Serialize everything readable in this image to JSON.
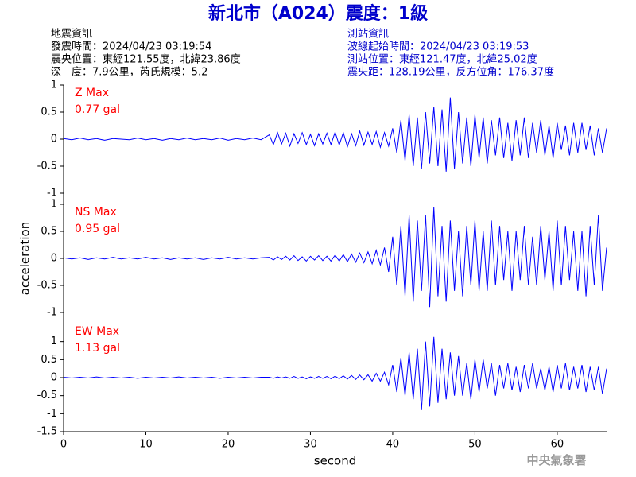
{
  "header": {
    "title": "新北市（A024）震度：1級",
    "left": [
      "地震資訊",
      "發震時間：2024/04/23 03:19:54",
      "震央位置：東經121.55度，北緯23.86度",
      "深　度：7.9公里，芮氏規模：5.2"
    ],
    "right": [
      "測站資訊",
      "波線起始時間：2024/04/23 03:19:53",
      "測站位置：東經121.47度，北緯25.02度",
      "震央距：128.19公里，反方位角：176.37度"
    ]
  },
  "footer": "中央氣象署",
  "chart_data": [
    {
      "type": "line",
      "annotations": [
        "Z Max",
        "0.77 gal"
      ],
      "color": "#0000ff",
      "annotation_color": "#ff0000",
      "xlim": [
        0,
        66
      ],
      "ylim": [
        -1,
        1
      ],
      "yticks": [
        -1,
        -0.5,
        0,
        0.5,
        1
      ],
      "x": [
        0,
        1,
        2,
        3,
        4,
        5,
        6,
        7,
        8,
        9,
        10,
        11,
        12,
        13,
        14,
        15,
        16,
        17,
        18,
        19,
        20,
        21,
        22,
        23,
        24,
        25,
        25.5,
        26,
        26.5,
        27,
        27.5,
        28,
        28.5,
        29,
        29.5,
        30,
        30.5,
        31,
        31.5,
        32,
        32.5,
        33,
        33.5,
        34,
        34.5,
        35,
        35.5,
        36,
        36.5,
        37,
        37.5,
        38,
        38.5,
        39,
        39.5,
        40,
        40.5,
        41,
        41.5,
        42,
        42.5,
        43,
        43.5,
        44,
        44.5,
        45,
        45.5,
        46,
        46.5,
        47,
        47.5,
        48,
        48.5,
        49,
        49.5,
        50,
        50.5,
        51,
        51.5,
        52,
        52.5,
        53,
        53.5,
        54,
        54.5,
        55,
        55.5,
        56,
        56.5,
        57,
        57.5,
        58,
        58.5,
        59,
        59.5,
        60,
        60.5,
        61,
        61.5,
        62,
        62.5,
        63,
        63.5,
        64,
        64.5,
        65,
        65.5,
        66
      ],
      "values": [
        0.01,
        -0.01,
        0.02,
        -0.01,
        0.01,
        -0.02,
        0.01,
        0,
        -0.01,
        0.02,
        -0.01,
        0.01,
        -0.02,
        0.01,
        -0.01,
        0.02,
        -0.01,
        0.01,
        -0.01,
        0.02,
        -0.02,
        0.01,
        -0.01,
        0.02,
        -0.01,
        0.08,
        -0.1,
        0.12,
        -0.09,
        0.11,
        -0.13,
        0.1,
        -0.08,
        0.12,
        -0.1,
        0.09,
        -0.12,
        0.1,
        -0.09,
        0.11,
        -0.1,
        0.13,
        -0.11,
        0.12,
        -0.14,
        0.1,
        -0.12,
        0.15,
        -0.11,
        0.13,
        -0.1,
        0.14,
        -0.15,
        0.12,
        -0.13,
        0.2,
        -0.25,
        0.35,
        -0.4,
        0.45,
        -0.5,
        0.4,
        -0.55,
        0.5,
        -0.45,
        0.6,
        -0.5,
        0.55,
        -0.6,
        0.77,
        -0.55,
        0.5,
        -0.45,
        0.4,
        -0.5,
        0.45,
        -0.35,
        0.4,
        -0.45,
        0.35,
        -0.3,
        0.4,
        -0.35,
        0.3,
        -0.4,
        0.35,
        -0.3,
        0.4,
        -0.35,
        0.3,
        -0.25,
        0.35,
        -0.3,
        0.25,
        -0.35,
        0.3,
        -0.2,
        0.25,
        -0.3,
        0.3,
        -0.25,
        0.3,
        -0.2,
        0.25,
        -0.3,
        0.2,
        -0.25,
        0.2
      ]
    },
    {
      "type": "line",
      "annotations": [
        "NS Max",
        "0.95 gal"
      ],
      "ylabel": "acceleration",
      "color": "#0000ff",
      "annotation_color": "#ff0000",
      "xlim": [
        0,
        66
      ],
      "ylim": [
        -1,
        1
      ],
      "yticks": [
        -1,
        -0.5,
        0,
        0.5,
        1
      ],
      "x": [
        0,
        1,
        2,
        3,
        4,
        5,
        6,
        7,
        8,
        9,
        10,
        11,
        12,
        13,
        14,
        15,
        16,
        17,
        18,
        19,
        20,
        21,
        22,
        23,
        24,
        25,
        25.5,
        26,
        26.5,
        27,
        27.5,
        28,
        28.5,
        29,
        29.5,
        30,
        30.5,
        31,
        31.5,
        32,
        32.5,
        33,
        33.5,
        34,
        34.5,
        35,
        35.5,
        36,
        36.5,
        37,
        37.5,
        38,
        38.5,
        39,
        39.5,
        40,
        40.5,
        41,
        41.5,
        42,
        42.5,
        43,
        43.5,
        44,
        44.5,
        45,
        45.5,
        46,
        46.5,
        47,
        47.5,
        48,
        48.5,
        49,
        49.5,
        50,
        50.5,
        51,
        51.5,
        52,
        52.5,
        53,
        53.5,
        54,
        54.5,
        55,
        55.5,
        56,
        56.5,
        57,
        57.5,
        58,
        58.5,
        59,
        59.5,
        60,
        60.5,
        61,
        61.5,
        62,
        62.5,
        63,
        63.5,
        64,
        64.5,
        65,
        65.5,
        66
      ],
      "values": [
        0.01,
        -0.01,
        0.01,
        -0.02,
        0.01,
        -0.01,
        0.02,
        -0.01,
        0.01,
        -0.01,
        0.02,
        -0.01,
        0.01,
        -0.02,
        0.01,
        -0.01,
        0.01,
        -0.02,
        0.01,
        -0.01,
        0.02,
        -0.01,
        0.01,
        -0.01,
        0.01,
        0.02,
        -0.03,
        0.03,
        -0.02,
        0.04,
        -0.03,
        0.05,
        -0.04,
        0.03,
        -0.05,
        0.04,
        -0.03,
        0.05,
        -0.04,
        0.04,
        -0.05,
        0.06,
        -0.05,
        0.07,
        -0.06,
        0.08,
        -0.07,
        0.1,
        -0.08,
        0.12,
        -0.1,
        0.15,
        -0.12,
        0.2,
        -0.25,
        0.4,
        -0.5,
        0.6,
        -0.7,
        0.8,
        -0.8,
        0.7,
        -0.6,
        0.8,
        -0.9,
        0.95,
        -0.7,
        0.6,
        -0.8,
        0.7,
        -0.6,
        0.5,
        -0.7,
        0.6,
        -0.5,
        0.7,
        -0.6,
        0.5,
        -0.6,
        0.7,
        -0.5,
        0.6,
        -0.4,
        0.5,
        -0.6,
        0.5,
        -0.4,
        0.6,
        -0.5,
        0.4,
        -0.5,
        0.6,
        -0.4,
        0.5,
        -0.6,
        0.7,
        -0.5,
        0.6,
        -0.4,
        0.5,
        -0.6,
        0.5,
        -0.7,
        0.6,
        -0.5,
        0.8,
        -0.6,
        0.2
      ]
    },
    {
      "type": "line",
      "annotations": [
        "EW Max",
        "1.13 gal"
      ],
      "xlabel": "second",
      "color": "#0000ff",
      "annotation_color": "#ff0000",
      "xlim": [
        0,
        66
      ],
      "xticks": [
        0,
        10,
        20,
        30,
        40,
        50,
        60
      ],
      "ylim": [
        -1.5,
        1.5
      ],
      "yticks": [
        -1.5,
        -1,
        -0.5,
        0,
        0.5,
        1
      ],
      "x": [
        0,
        1,
        2,
        3,
        4,
        5,
        6,
        7,
        8,
        9,
        10,
        11,
        12,
        13,
        14,
        15,
        16,
        17,
        18,
        19,
        20,
        21,
        22,
        23,
        24,
        25,
        25.5,
        26,
        26.5,
        27,
        27.5,
        28,
        28.5,
        29,
        29.5,
        30,
        30.5,
        31,
        31.5,
        32,
        32.5,
        33,
        33.5,
        34,
        34.5,
        35,
        35.5,
        36,
        36.5,
        37,
        37.5,
        38,
        38.5,
        39,
        39.5,
        40,
        40.5,
        41,
        41.5,
        42,
        42.5,
        43,
        43.5,
        44,
        44.5,
        45,
        45.5,
        46,
        46.5,
        47,
        47.5,
        48,
        48.5,
        49,
        49.5,
        50,
        50.5,
        51,
        51.5,
        52,
        52.5,
        53,
        53.5,
        54,
        54.5,
        55,
        55.5,
        56,
        56.5,
        57,
        57.5,
        58,
        58.5,
        59,
        59.5,
        60,
        60.5,
        61,
        61.5,
        62,
        62.5,
        63,
        63.5,
        64,
        64.5,
        65,
        65.5,
        66
      ],
      "values": [
        0.01,
        -0.01,
        0.01,
        -0.01,
        0.02,
        -0.01,
        0.01,
        -0.01,
        0.01,
        -0.02,
        0.01,
        -0.01,
        0.01,
        -0.01,
        0.02,
        -0.01,
        0.01,
        -0.01,
        0.01,
        -0.02,
        0.01,
        -0.01,
        0.01,
        -0.01,
        0.01,
        0.01,
        -0.02,
        0.02,
        -0.01,
        0.02,
        -0.02,
        0.03,
        -0.02,
        0.02,
        -0.03,
        0.02,
        -0.02,
        0.03,
        -0.02,
        0.03,
        -0.03,
        0.04,
        -0.03,
        0.05,
        -0.04,
        0.06,
        -0.05,
        0.07,
        -0.06,
        0.08,
        -0.1,
        0.12,
        -0.1,
        0.15,
        -0.2,
        0.35,
        -0.4,
        0.55,
        -0.5,
        0.7,
        -0.6,
        0.8,
        -0.9,
        1.0,
        -0.8,
        1.13,
        -0.7,
        0.8,
        -0.6,
        0.7,
        -0.5,
        0.6,
        -0.5,
        0.4,
        -0.6,
        0.5,
        -0.4,
        0.5,
        -0.3,
        0.4,
        -0.5,
        0.35,
        -0.3,
        0.4,
        -0.35,
        0.3,
        -0.4,
        0.35,
        -0.3,
        0.4,
        -0.3,
        0.25,
        -0.35,
        0.3,
        -0.4,
        0.35,
        -0.3,
        0.4,
        -0.35,
        0.3,
        -0.3,
        0.35,
        -0.4,
        0.3,
        -0.35,
        0.3,
        -0.45,
        0.25
      ]
    }
  ]
}
